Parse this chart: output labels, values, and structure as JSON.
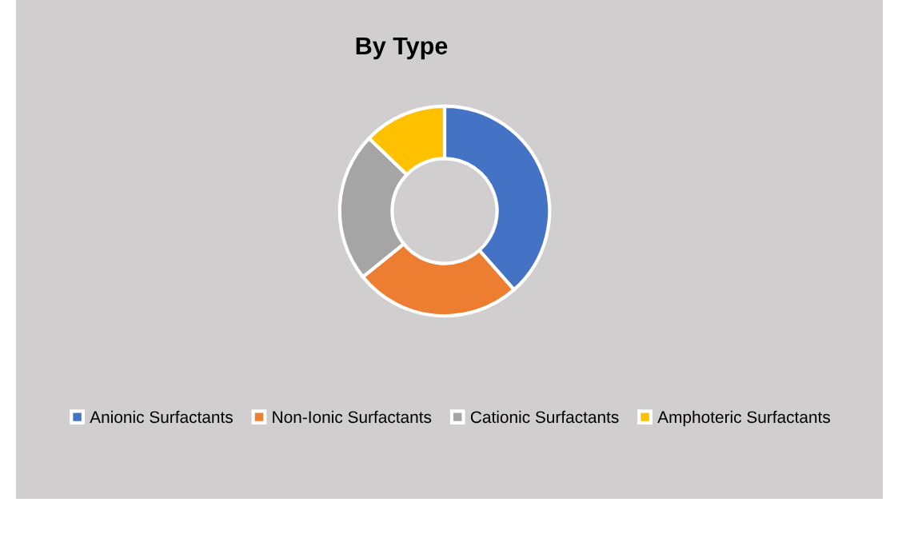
{
  "chart_data": {
    "type": "donut",
    "title": "By Type",
    "categories": [
      "Anionic Surfactants",
      "Non-Ionic Surfactants",
      "Cationic Surfactants",
      "Amphoteric Surfactants"
    ],
    "values": [
      38.5,
      25.7,
      23.0,
      12.8
    ],
    "colors": [
      "#4472c4",
      "#ed7d31",
      "#a5a5a5",
      "#ffc000"
    ],
    "legend": "bottom"
  }
}
